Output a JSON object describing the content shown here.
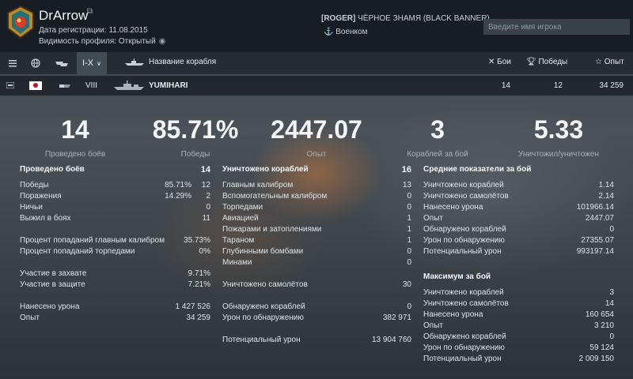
{
  "header": {
    "player_name": "DrArrow",
    "registration": "Дата регистрации: 11.08.2015",
    "visibility": "Видимость профиля:  Открытый",
    "clan_tag": "[ROGER]",
    "clan_name": "ЧЁРНОЕ ЗНАМЯ (BLACK BANNER)",
    "clan_rank": "Военком",
    "search_placeholder": "Введите имя игрока",
    "icons": [
      "copy-link-icon",
      "eye-icon",
      "anchor-icon"
    ]
  },
  "filters": {
    "tier_label": "I-X",
    "ship_name_label": "Название корабля",
    "battles_label": "Бои",
    "wins_label": "Победы",
    "xp_label": "Опыт",
    "icons": [
      "ship-class-icon",
      "globe-icon",
      "ships-icon",
      "chevron-down-icon",
      "ship-silhouette-icon",
      "close-icon",
      "trophy-icon",
      "star-icon"
    ]
  },
  "ship": {
    "nation": "japan",
    "tier": "VIII",
    "name": "YUMIHARI",
    "battles": "14",
    "wins": "12",
    "xp": "34 259"
  },
  "summary": [
    {
      "value": "14",
      "label": "Проведено боёв"
    },
    {
      "value": "85.71%",
      "label": "Победы"
    },
    {
      "value": "2447.07",
      "label": "Опыт"
    },
    {
      "value": "3",
      "label": "Кораблей за бой"
    },
    {
      "value": "5.33",
      "label": "Уничтожил/уничтожен"
    }
  ],
  "col1": {
    "header": {
      "label": "Проведено боёв",
      "value": "14"
    },
    "rows": [
      {
        "label": "Победы",
        "pct": "85.71%",
        "value": "12"
      },
      {
        "label": "Поражения",
        "pct": "14.29%",
        "value": "2"
      },
      {
        "label": "Ничьи",
        "pct": "",
        "value": "0"
      },
      {
        "label": "Выжил в боях",
        "pct": "",
        "value": "11"
      }
    ],
    "rows2": [
      {
        "label": "Процент попаданий главным калибром",
        "value": "35.73%"
      },
      {
        "label": "Процент попаданий торпедами",
        "value": "0%"
      }
    ],
    "rows3": [
      {
        "label": "Участие в захвате",
        "value": "9.71%"
      },
      {
        "label": "Участие в защите",
        "value": "7.21%"
      }
    ],
    "rows4": [
      {
        "label": "Нанесено урона",
        "value": "1 427 526"
      },
      {
        "label": "Опыт",
        "value": "34 259"
      }
    ]
  },
  "col2": {
    "header": {
      "label": "Уничтожено кораблей",
      "value": "16"
    },
    "rows": [
      {
        "label": "Главным калибром",
        "value": "13"
      },
      {
        "label": "Вспомогательным калибром",
        "value": "0"
      },
      {
        "label": "Торпедами",
        "value": "0"
      },
      {
        "label": "Авиацией",
        "value": "1"
      },
      {
        "label": "Пожарами и затоплениями",
        "value": "1"
      },
      {
        "label": "Тараном",
        "value": "1"
      },
      {
        "label": "Глубинными бомбами",
        "value": "0"
      },
      {
        "label": "Минами",
        "value": "0"
      }
    ],
    "rows2": [
      {
        "label": "Уничтожено самолётов",
        "value": "30"
      }
    ],
    "rows3": [
      {
        "label": "Обнаружено кораблей",
        "value": "0"
      },
      {
        "label": "Урон по обнаружению",
        "value": "382 971"
      }
    ],
    "rows4": [
      {
        "label": "Потенциальный урон",
        "value": "13 904 760"
      }
    ]
  },
  "col3": {
    "header": "Средние показатели за бой",
    "rows": [
      {
        "label": "Уничтожено кораблей",
        "value": "1.14"
      },
      {
        "label": "Уничтожено самолётов",
        "value": "2.14"
      },
      {
        "label": "Нанесено урона",
        "value": "101966.14"
      },
      {
        "label": "Опыт",
        "value": "2447.07"
      },
      {
        "label": "Обнаружено кораблей",
        "value": "0"
      },
      {
        "label": "Урон по обнаружению",
        "value": "27355.07"
      },
      {
        "label": "Потенциальный урон",
        "value": "993197.14"
      }
    ],
    "header2": "Максимум за бой",
    "rows2": [
      {
        "label": "Уничтожено кораблей",
        "value": "3"
      },
      {
        "label": "Уничтожено самолётов",
        "value": "14"
      },
      {
        "label": "Нанесено урона",
        "value": "160 654"
      },
      {
        "label": "Опыт",
        "value": "3 210"
      },
      {
        "label": "Обнаружено кораблей",
        "value": "0"
      },
      {
        "label": "Урон по обнаружению",
        "value": "59 124"
      },
      {
        "label": "Потенциальный урон",
        "value": "2 009 150"
      }
    ]
  }
}
